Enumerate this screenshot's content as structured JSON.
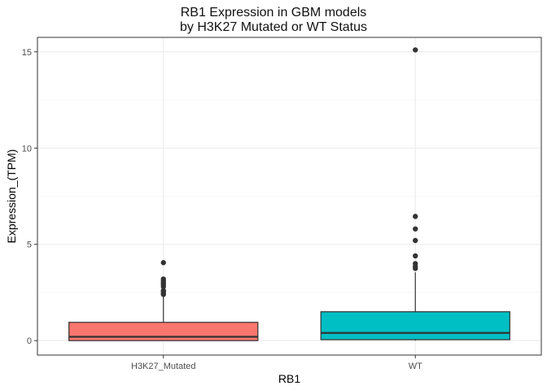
{
  "chart_data": {
    "type": "boxplot",
    "title": "RB1 Expression in GBM models",
    "subtitle": "by H3K27 Mutated or WT Status",
    "xlabel": "RB1",
    "ylabel": "Expression_(TPM)",
    "ylim": [
      -0.75,
      15.75
    ],
    "yticks": [
      0,
      5,
      10,
      15
    ],
    "grid": true,
    "legend": "none",
    "categories": [
      "H3K27_Mutated",
      "WT"
    ],
    "boxes": [
      {
        "category": "H3K27_Mutated",
        "color": "#F8766D",
        "min": 0.0,
        "q1": 0.0,
        "median": 0.2,
        "q3": 0.95,
        "max": 2.35,
        "outliers": [
          2.4,
          2.45,
          2.55,
          2.6,
          2.8,
          2.9,
          3.0,
          3.1,
          3.2,
          4.05
        ]
      },
      {
        "category": "WT",
        "color": "#00BFC4",
        "min": 0.0,
        "q1": 0.05,
        "median": 0.4,
        "q3": 1.5,
        "max": 3.55,
        "outliers": [
          3.75,
          3.85,
          4.0,
          4.4,
          5.2,
          5.8,
          6.45,
          15.1
        ]
      }
    ]
  }
}
